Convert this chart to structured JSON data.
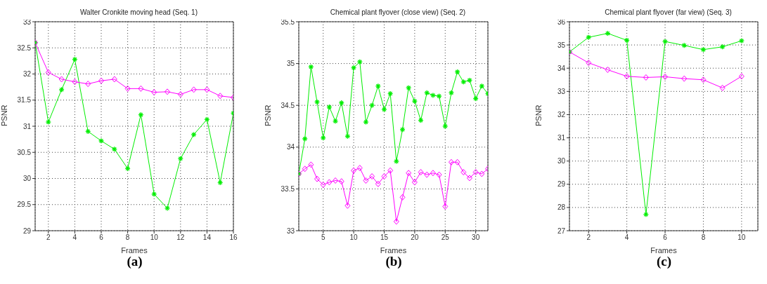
{
  "chart_data": [
    {
      "type": "line",
      "title": "Walter Cronkite moving head (Seq. 1)",
      "xlabel": "Frames",
      "ylabel": "PSNR",
      "annotations": [
        "(a)"
      ],
      "x": [
        1,
        2,
        3,
        4,
        5,
        6,
        7,
        8,
        9,
        10,
        11,
        12,
        13,
        14,
        15,
        16
      ],
      "series": [
        {
          "color": "#00ee00",
          "marker": "cross",
          "values": [
            32.6,
            31.08,
            31.7,
            32.28,
            30.9,
            30.72,
            30.56,
            30.19,
            31.22,
            29.7,
            29.43,
            30.38,
            30.84,
            31.13,
            29.92,
            31.25
          ]
        },
        {
          "color": "#ff00ff",
          "marker": "diamond",
          "values": [
            32.6,
            32.03,
            31.9,
            31.85,
            31.81,
            31.87,
            31.9,
            31.72,
            31.72,
            31.65,
            31.66,
            31.61,
            31.7,
            31.7,
            31.58,
            31.55
          ]
        }
      ],
      "xlim": [
        1,
        16
      ],
      "xticks": [
        2,
        4,
        6,
        8,
        10,
        12,
        14,
        16
      ],
      "ylim": [
        29,
        33
      ],
      "yticks": [
        29,
        29.5,
        30,
        30.5,
        31,
        31.5,
        32,
        32.5,
        33
      ],
      "grid": true,
      "line_style": "solid"
    },
    {
      "type": "line",
      "title": "Chemical plant flyover (close view) (Seq. 2)",
      "xlabel": "Frames",
      "ylabel": "PSNR",
      "annotations": [
        "(b)"
      ],
      "x": [
        1,
        2,
        3,
        4,
        5,
        6,
        7,
        8,
        9,
        10,
        11,
        12,
        13,
        14,
        15,
        16,
        17,
        18,
        19,
        20,
        21,
        22,
        23,
        24,
        25,
        26,
        27,
        28,
        29,
        30,
        31,
        32
      ],
      "series": [
        {
          "color": "#00ee00",
          "marker": "cross",
          "values": [
            33.68,
            34.1,
            34.96,
            34.54,
            34.11,
            34.48,
            34.31,
            34.53,
            34.13,
            34.95,
            35.02,
            34.3,
            34.5,
            34.73,
            34.45,
            34.64,
            33.83,
            34.21,
            34.71,
            34.55,
            34.32,
            34.65,
            34.62,
            34.61,
            34.25,
            34.65,
            34.9,
            34.78,
            34.8,
            34.58,
            34.73,
            34.64
          ]
        },
        {
          "color": "#ff00ff",
          "marker": "diamond",
          "values": [
            33.68,
            33.74,
            33.79,
            33.62,
            33.55,
            33.58,
            33.6,
            33.59,
            33.3,
            33.72,
            33.75,
            33.6,
            33.65,
            33.56,
            33.65,
            33.72,
            33.11,
            33.4,
            33.69,
            33.58,
            33.7,
            33.67,
            33.69,
            33.67,
            33.29,
            33.82,
            33.82,
            33.7,
            33.63,
            33.7,
            33.68,
            33.74
          ]
        }
      ],
      "xlim": [
        1,
        32
      ],
      "xticks": [
        5,
        10,
        15,
        20,
        25,
        30
      ],
      "ylim": [
        33,
        35.5
      ],
      "yticks": [
        33,
        33.5,
        34,
        34.5,
        35,
        35.5
      ],
      "grid": true,
      "line_style": "solid"
    },
    {
      "type": "line",
      "title": "Chemical plant flyover (far view) (Seq. 3)",
      "xlabel": "Frames",
      "ylabel": "PSNR",
      "annotations": [
        "(c)"
      ],
      "x": [
        1,
        2,
        3,
        4,
        5,
        6,
        7,
        8,
        9,
        10
      ],
      "series": [
        {
          "color": "#00ee00",
          "marker": "cross",
          "values": [
            34.7,
            35.33,
            35.5,
            35.2,
            27.7,
            35.15,
            34.98,
            34.8,
            34.92,
            35.18
          ]
        },
        {
          "color": "#ff00ff",
          "marker": "diamond",
          "values": [
            34.7,
            34.23,
            33.93,
            33.65,
            33.6,
            33.63,
            33.55,
            33.5,
            33.15,
            33.65
          ]
        }
      ],
      "xlim": [
        1,
        10.85
      ],
      "xticks": [
        2,
        4,
        6,
        8,
        10
      ],
      "ylim": [
        27,
        36
      ],
      "yticks": [
        27,
        28,
        29,
        30,
        31,
        32,
        33,
        34,
        35,
        36
      ],
      "grid": true,
      "line_style": "solid"
    }
  ]
}
